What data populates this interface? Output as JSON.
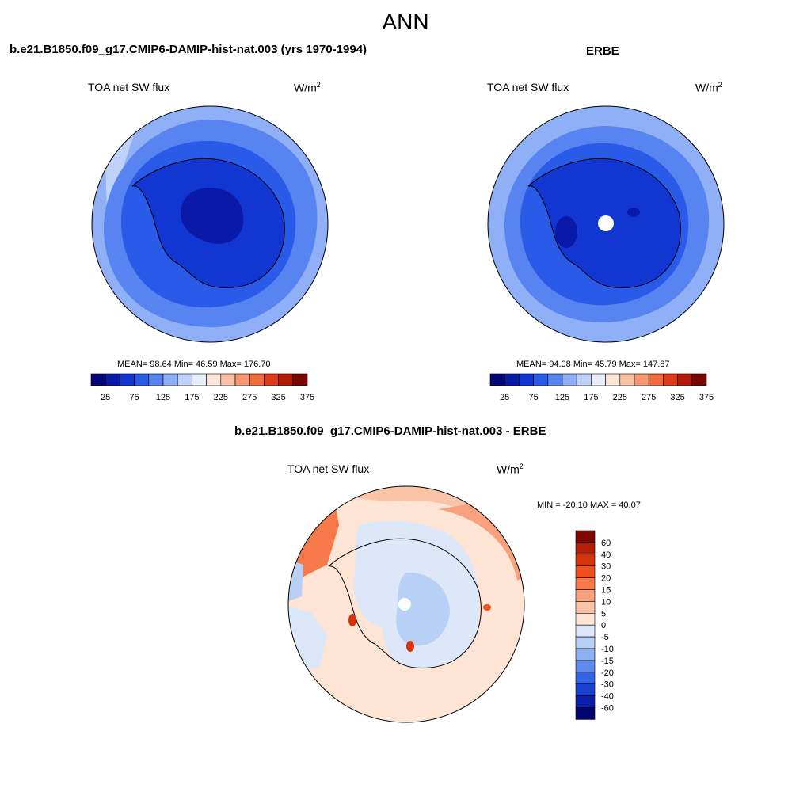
{
  "page_title": "ANN",
  "panels": [
    {
      "title": "b.e21.B1850.f09_g17.CMIP6-DAMIP-hist-nat.003 (yrs 1970-1994)",
      "variable": "TOA net SW flux",
      "units": "W/m",
      "units_sup": "2",
      "stats": "MEAN=  98.64  Min=  46.59  Max= 176.70"
    },
    {
      "title": "ERBE",
      "variable": "TOA net SW flux",
      "units": "W/m",
      "units_sup": "2",
      "stats": "MEAN=  94.08  Min=  45.79  Max= 147.87"
    },
    {
      "title": "b.e21.B1850.f09_g17.CMIP6-DAMIP-hist-nat.003 - ERBE",
      "variable": "TOA net SW flux",
      "units": "W/m",
      "units_sup": "2",
      "stats": "MIN = -20.10 MAX =  40.07"
    }
  ],
  "chart_data": [
    {
      "type": "heatmap",
      "projection": "south polar stereographic",
      "title": "b.e21.B1850.f09_g17.CMIP6-DAMIP-hist-nat.003 (yrs 1970-1994)",
      "variable": "TOA net SW flux",
      "units": "W/m2",
      "mean": 98.64,
      "min": 46.59,
      "max": 176.7,
      "colorbar": {
        "orientation": "horizontal",
        "levels": [
          25,
          50,
          75,
          100,
          125,
          150,
          175,
          200,
          225,
          250,
          275,
          300,
          325,
          350,
          375
        ],
        "tick_labels": [
          "25",
          "75",
          "125",
          "175",
          "225",
          "275",
          "325",
          "375"
        ],
        "colors": [
          "#030578",
          "#0a1aa8",
          "#1236d2",
          "#2a5ae8",
          "#5884f2",
          "#8fb0f6",
          "#bfd2fa",
          "#e6eefc",
          "#fde6d8",
          "#f9c2a6",
          "#f69a74",
          "#f26a3e",
          "#e13a1a",
          "#b51a08",
          "#7a0603"
        ]
      },
      "map_description_levels": {
        "outer_ring": 150,
        "middle_ring": 125,
        "ocean_near_coast": 100,
        "continent": 75,
        "interior": 50
      }
    },
    {
      "type": "heatmap",
      "projection": "south polar stereographic",
      "title": "ERBE",
      "variable": "TOA net SW flux",
      "units": "W/m2",
      "mean": 94.08,
      "min": 45.79,
      "max": 147.87,
      "colorbar": {
        "orientation": "horizontal",
        "levels": [
          25,
          50,
          75,
          100,
          125,
          150,
          175,
          200,
          225,
          250,
          275,
          300,
          325,
          350,
          375
        ],
        "tick_labels": [
          "25",
          "75",
          "125",
          "175",
          "225",
          "275",
          "325",
          "375"
        ],
        "colors": [
          "#030578",
          "#0a1aa8",
          "#1236d2",
          "#2a5ae8",
          "#5884f2",
          "#8fb0f6",
          "#bfd2fa",
          "#e6eefc",
          "#fde6d8",
          "#f9c2a6",
          "#f69a74",
          "#f26a3e",
          "#e13a1a",
          "#b51a08",
          "#7a0603"
        ]
      },
      "map_description_levels": {
        "outer_ring": 125,
        "ocean_near_coast": 100,
        "continent": 75,
        "missing_pole": null
      }
    },
    {
      "type": "heatmap",
      "projection": "south polar stereographic",
      "title": "b.e21.B1850.f09_g17.CMIP6-DAMIP-hist-nat.003 - ERBE",
      "variable": "TOA net SW flux",
      "units": "W/m2",
      "min": -20.1,
      "max": 40.07,
      "colorbar": {
        "orientation": "vertical",
        "levels": [
          60,
          40,
          30,
          20,
          15,
          10,
          5,
          0,
          -5,
          -10,
          -15,
          -20,
          -30,
          -40,
          -60
        ],
        "tick_labels": [
          "60",
          "40",
          "30",
          "20",
          "15",
          "10",
          "5",
          "0",
          "-5",
          "-10",
          "-15",
          "-20",
          "-30",
          "-40",
          "-60"
        ],
        "colors": [
          "#7f0803",
          "#b31e06",
          "#d8340c",
          "#f24e1c",
          "#f6794c",
          "#f9a07c",
          "#fac4a8",
          "#fde4d4",
          "#dce8fa",
          "#b8d0f6",
          "#8cb0f2",
          "#5e8aee",
          "#3464e6",
          "#1a40d0",
          "#0a1ea8",
          "#020470"
        ]
      }
    }
  ]
}
